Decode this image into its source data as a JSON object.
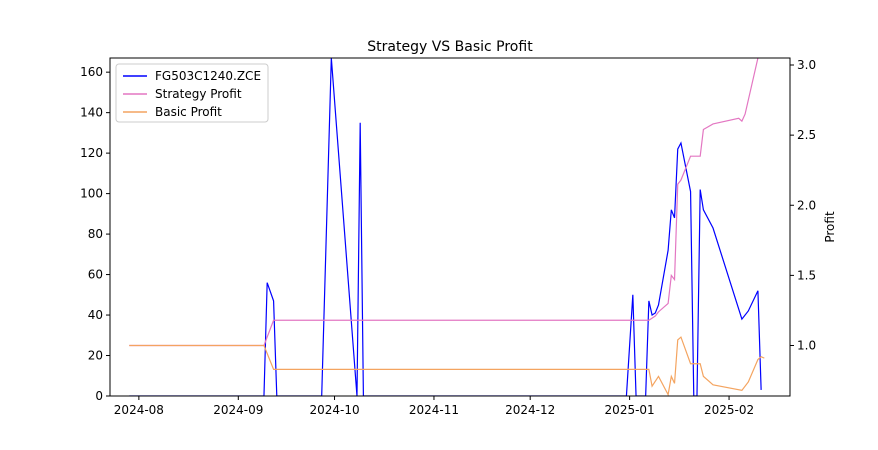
{
  "chart_data": {
    "type": "line",
    "title": "Strategy VS Basic Profit",
    "xlabel": "",
    "ylabel_left": "",
    "ylabel_right": "Profit",
    "x_ticks": [
      "2024-08",
      "2024-09",
      "2024-10",
      "2024-11",
      "2024-12",
      "2025-01",
      "2025-02"
    ],
    "xlim": [
      "2024-07-23",
      "2025-02-20"
    ],
    "y_left_ticks": [
      0,
      20,
      40,
      60,
      80,
      100,
      120,
      140,
      160
    ],
    "ylim_left": [
      0,
      167
    ],
    "y_right_ticks": [
      "1.0",
      "1.5",
      "2.0",
      "2.5",
      "3.0"
    ],
    "ylim_right": [
      0.64,
      3.05
    ],
    "legend": {
      "position": "upper-left",
      "entries": [
        "FG503C1240.ZCE",
        "Strategy Profit",
        "Basic Profit"
      ]
    },
    "series": [
      {
        "name": "FG503C1240.ZCE",
        "axis": "left",
        "color": "#0000ff",
        "points": [
          [
            "2024-07-29",
            0
          ],
          [
            "2024-09-09",
            0
          ],
          [
            "2024-09-10",
            56
          ],
          [
            "2024-09-12",
            47
          ],
          [
            "2024-09-13",
            0
          ],
          [
            "2024-09-27",
            0
          ],
          [
            "2024-09-30",
            167
          ],
          [
            "2024-10-08",
            0
          ],
          [
            "2024-10-09",
            135
          ],
          [
            "2024-10-10",
            0
          ],
          [
            "2024-12-31",
            0
          ],
          [
            "2025-01-02",
            50
          ],
          [
            "2025-01-03",
            0
          ],
          [
            "2025-01-06",
            0
          ],
          [
            "2025-01-07",
            47
          ],
          [
            "2025-01-08",
            40
          ],
          [
            "2025-01-09",
            41
          ],
          [
            "2025-01-10",
            45
          ],
          [
            "2025-01-13",
            72
          ],
          [
            "2025-01-14",
            92
          ],
          [
            "2025-01-15",
            88
          ],
          [
            "2025-01-16",
            122
          ],
          [
            "2025-01-17",
            125
          ],
          [
            "2025-01-20",
            101
          ],
          [
            "2025-01-21",
            0
          ],
          [
            "2025-01-22",
            0
          ],
          [
            "2025-01-23",
            102
          ],
          [
            "2025-01-24",
            92
          ],
          [
            "2025-01-27",
            83
          ],
          [
            "2025-02-05",
            38
          ],
          [
            "2025-02-07",
            42
          ],
          [
            "2025-02-10",
            52
          ],
          [
            "2025-02-11",
            3
          ]
        ]
      },
      {
        "name": "Strategy Profit",
        "axis": "right",
        "color": "#e377c2",
        "points": [
          [
            "2024-07-29",
            1.0
          ],
          [
            "2024-09-09",
            1.0
          ],
          [
            "2024-09-12",
            1.18
          ],
          [
            "2025-01-07",
            1.18
          ],
          [
            "2025-01-09",
            1.21
          ],
          [
            "2025-01-10",
            1.24
          ],
          [
            "2025-01-13",
            1.3
          ],
          [
            "2025-01-14",
            1.5
          ],
          [
            "2025-01-15",
            1.47
          ],
          [
            "2025-01-16",
            2.15
          ],
          [
            "2025-01-17",
            2.18
          ],
          [
            "2025-01-20",
            2.35
          ],
          [
            "2025-01-23",
            2.35
          ],
          [
            "2025-01-24",
            2.54
          ],
          [
            "2025-01-27",
            2.58
          ],
          [
            "2025-02-04",
            2.62
          ],
          [
            "2025-02-05",
            2.6
          ],
          [
            "2025-02-06",
            2.65
          ],
          [
            "2025-02-10",
            3.05
          ]
        ]
      },
      {
        "name": "Basic Profit",
        "axis": "right",
        "color": "#f4a460",
        "points": [
          [
            "2024-07-29",
            1.0
          ],
          [
            "2024-09-09",
            1.0
          ],
          [
            "2024-09-12",
            0.83
          ],
          [
            "2025-01-07",
            0.83
          ],
          [
            "2025-01-08",
            0.71
          ],
          [
            "2025-01-10",
            0.78
          ],
          [
            "2025-01-13",
            0.65
          ],
          [
            "2025-01-14",
            0.78
          ],
          [
            "2025-01-15",
            0.73
          ],
          [
            "2025-01-16",
            1.04
          ],
          [
            "2025-01-17",
            1.06
          ],
          [
            "2025-01-20",
            0.87
          ],
          [
            "2025-01-23",
            0.87
          ],
          [
            "2025-01-24",
            0.78
          ],
          [
            "2025-01-27",
            0.72
          ],
          [
            "2025-02-05",
            0.68
          ],
          [
            "2025-02-07",
            0.74
          ],
          [
            "2025-02-10",
            0.9
          ],
          [
            "2025-02-11",
            0.92
          ],
          [
            "2025-02-12",
            0.91
          ]
        ]
      }
    ]
  }
}
